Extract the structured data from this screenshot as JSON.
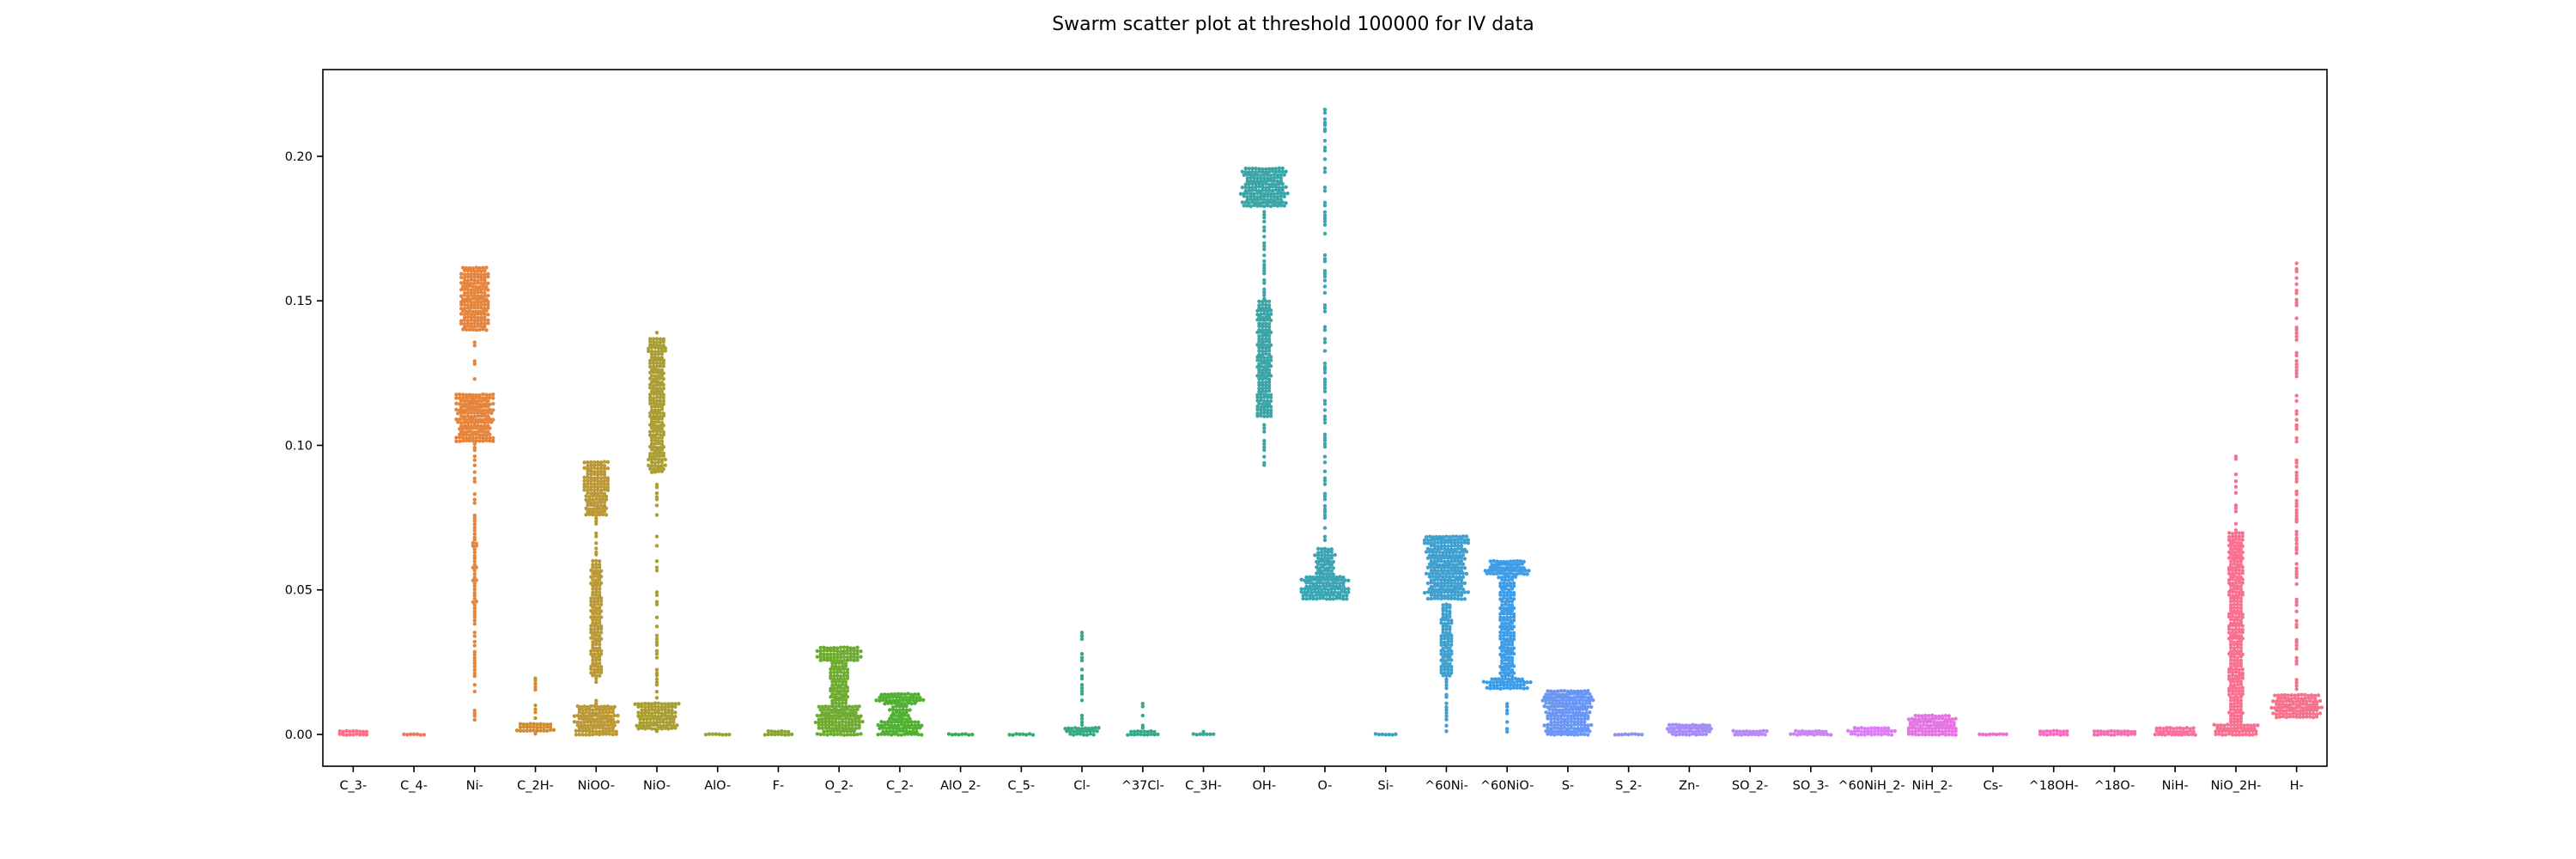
{
  "chart_data": {
    "type": "scatter",
    "subtype": "swarm",
    "title": "Swarm scatter plot at threshold 100000 for IV data",
    "xlabel": "",
    "ylabel": "",
    "ylim": [
      -0.011,
      0.23
    ],
    "yticks": [
      0.0,
      0.05,
      0.1,
      0.15,
      0.2
    ],
    "ytick_labels": [
      "0.00",
      "0.05",
      "0.10",
      "0.15",
      "0.20"
    ],
    "grid": false,
    "legend": "none",
    "series": [
      {
        "name": "C_3-",
        "color": "#f77189",
        "min": 0.0,
        "max": 0.0012,
        "dense": [
          [
            0.0,
            0.0012,
            0.5
          ]
        ]
      },
      {
        "name": "C_4-",
        "color": "#f6745c",
        "min": 0.0,
        "max": 0.001,
        "dense": [
          [
            0.0,
            0.001,
            0.5
          ]
        ]
      },
      {
        "name": "Ni-",
        "color": "#e7843a",
        "min": 0.002,
        "max": 0.162,
        "dense": [
          [
            0.101,
            0.118,
            0.62
          ],
          [
            0.14,
            0.162,
            0.48
          ],
          [
            0.04,
            0.07,
            0.1
          ]
        ]
      },
      {
        "name": "C_2H-",
        "color": "#cf8c32",
        "min": 0.0003,
        "max": 0.023,
        "dense": [
          [
            0.0005,
            0.004,
            0.62
          ]
        ]
      },
      {
        "name": "NiOO-",
        "color": "#bb9832",
        "min": 0.0,
        "max": 0.097,
        "dense": [
          [
            0.0,
            0.01,
            0.72
          ],
          [
            0.075,
            0.095,
            0.42
          ],
          [
            0.02,
            0.06,
            0.22
          ]
        ]
      },
      {
        "name": "NiO-",
        "color": "#aa9d32",
        "min": 0.001,
        "max": 0.139,
        "dense": [
          [
            0.002,
            0.011,
            0.72
          ],
          [
            0.09,
            0.137,
            0.3
          ]
        ]
      },
      {
        "name": "AlO-",
        "color": "#9aa232",
        "min": 0.0,
        "max": 0.0006,
        "dense": [
          [
            0.0,
            0.0006,
            0.5
          ]
        ]
      },
      {
        "name": "F-",
        "color": "#88a632",
        "min": 0.0,
        "max": 0.0015,
        "dense": [
          [
            0.0,
            0.0015,
            0.5
          ]
        ]
      },
      {
        "name": "O_2-",
        "color": "#6fab32",
        "min": 0.0,
        "max": 0.031,
        "dense": [
          [
            0.0,
            0.01,
            0.75
          ],
          [
            0.025,
            0.031,
            0.72
          ],
          [
            0.01,
            0.025,
            0.35
          ]
        ]
      },
      {
        "name": "C_2-",
        "color": "#4fb032",
        "min": 0.0,
        "max": 0.0145,
        "dense": [
          [
            0.0,
            0.005,
            0.75
          ],
          [
            0.01,
            0.0145,
            0.75
          ],
          [
            0.005,
            0.01,
            0.4
          ]
        ]
      },
      {
        "name": "AlO_2-",
        "color": "#34ae54",
        "min": 0.0,
        "max": 0.0006,
        "dense": [
          [
            0.0,
            0.0006,
            0.5
          ]
        ]
      },
      {
        "name": "C_5-",
        "color": "#35ac6c",
        "min": 0.0,
        "max": 0.0006,
        "dense": [
          [
            0.0,
            0.0006,
            0.5
          ]
        ]
      },
      {
        "name": "Cl-",
        "color": "#36aa7e",
        "min": 0.0,
        "max": 0.036,
        "dense": [
          [
            0.0,
            0.003,
            0.55
          ]
        ]
      },
      {
        "name": "^37Cl-",
        "color": "#36a98d",
        "min": 0.0,
        "max": 0.013,
        "dense": [
          [
            0.0,
            0.0015,
            0.55
          ]
        ]
      },
      {
        "name": "C_3H-",
        "color": "#37a79a",
        "min": 0.0,
        "max": 0.0015,
        "dense": [
          [
            0.0,
            0.001,
            0.5
          ]
        ]
      },
      {
        "name": "OH-",
        "color": "#38a5a6",
        "min": 0.093,
        "max": 0.196,
        "dense": [
          [
            0.182,
            0.196,
            0.78
          ],
          [
            0.11,
            0.15,
            0.28
          ]
        ]
      },
      {
        "name": "O-",
        "color": "#39a4b2",
        "min": 0.047,
        "max": 0.217,
        "dense": [
          [
            0.047,
            0.055,
            0.78
          ],
          [
            0.055,
            0.065,
            0.35
          ]
        ]
      },
      {
        "name": "Si-",
        "color": "#3aa2c0",
        "min": 0.0,
        "max": 0.0005,
        "dense": [
          [
            0.0,
            0.0005,
            0.5
          ]
        ]
      },
      {
        "name": "^60Ni-",
        "color": "#3ca0d2",
        "min": 0.001,
        "max": 0.069,
        "dense": [
          [
            0.047,
            0.069,
            0.72
          ],
          [
            0.02,
            0.045,
            0.22
          ]
        ]
      },
      {
        "name": "^60NiO-",
        "color": "#3e9ce6",
        "min": 0.001,
        "max": 0.06,
        "dense": [
          [
            0.015,
            0.02,
            0.75
          ],
          [
            0.055,
            0.06,
            0.7
          ],
          [
            0.02,
            0.055,
            0.3
          ]
        ]
      },
      {
        "name": "S-",
        "color": "#6996f4",
        "min": 0.0,
        "max": 0.016,
        "dense": [
          [
            0.0,
            0.015,
            0.78
          ]
        ]
      },
      {
        "name": "S_2-",
        "color": "#8b91f4",
        "min": 0.0,
        "max": 0.0008,
        "dense": [
          [
            0.0,
            0.0008,
            0.5
          ]
        ]
      },
      {
        "name": "Zn-",
        "color": "#a48cf4",
        "min": 0.0,
        "max": 0.0035,
        "dense": [
          [
            0.0,
            0.0035,
            0.75
          ]
        ]
      },
      {
        "name": "SO_2-",
        "color": "#b888f4",
        "min": 0.0,
        "max": 0.002,
        "dense": [
          [
            0.0,
            0.002,
            0.7
          ]
        ]
      },
      {
        "name": "SO_3-",
        "color": "#c984f4",
        "min": 0.0,
        "max": 0.0012,
        "dense": [
          [
            0.0,
            0.0012,
            0.7
          ]
        ]
      },
      {
        "name": "^60NiH_2-",
        "color": "#da7ef3",
        "min": 0.0,
        "max": 0.003,
        "dense": [
          [
            0.0,
            0.003,
            0.75
          ]
        ]
      },
      {
        "name": "NiH_2-",
        "color": "#e673e4",
        "min": 0.0,
        "max": 0.007,
        "dense": [
          [
            0.0,
            0.007,
            0.78
          ]
        ]
      },
      {
        "name": "Cs-",
        "color": "#f16ad4",
        "min": 0.0,
        "max": 0.0008,
        "dense": [
          [
            0.0,
            0.0008,
            0.6
          ]
        ]
      },
      {
        "name": "^18OH-",
        "color": "#f46dc1",
        "min": 0.0,
        "max": 0.0015,
        "dense": [
          [
            0.0,
            0.0015,
            0.65
          ]
        ]
      },
      {
        "name": "^18O-",
        "color": "#f56fb0",
        "min": 0.0,
        "max": 0.0018,
        "dense": [
          [
            0.0,
            0.0018,
            0.7
          ]
        ]
      },
      {
        "name": "NiH-",
        "color": "#f6709f",
        "min": 0.0,
        "max": 0.003,
        "dense": [
          [
            0.0,
            0.003,
            0.72
          ]
        ]
      },
      {
        "name": "NiO_2H-",
        "color": "#f7718e",
        "min": 0.0,
        "max": 0.097,
        "dense": [
          [
            0.0,
            0.004,
            0.75
          ],
          [
            0.004,
            0.07,
            0.28
          ]
        ]
      },
      {
        "name": "H-",
        "color": "#f7718b",
        "min": 0.005,
        "max": 0.163,
        "dense": [
          [
            0.005,
            0.014,
            0.8
          ]
        ],
        "outliers": [
          0.163,
          0.132,
          0.107,
          0.094,
          0.084,
          0.074,
          0.066,
          0.059,
          0.052
        ]
      }
    ]
  }
}
